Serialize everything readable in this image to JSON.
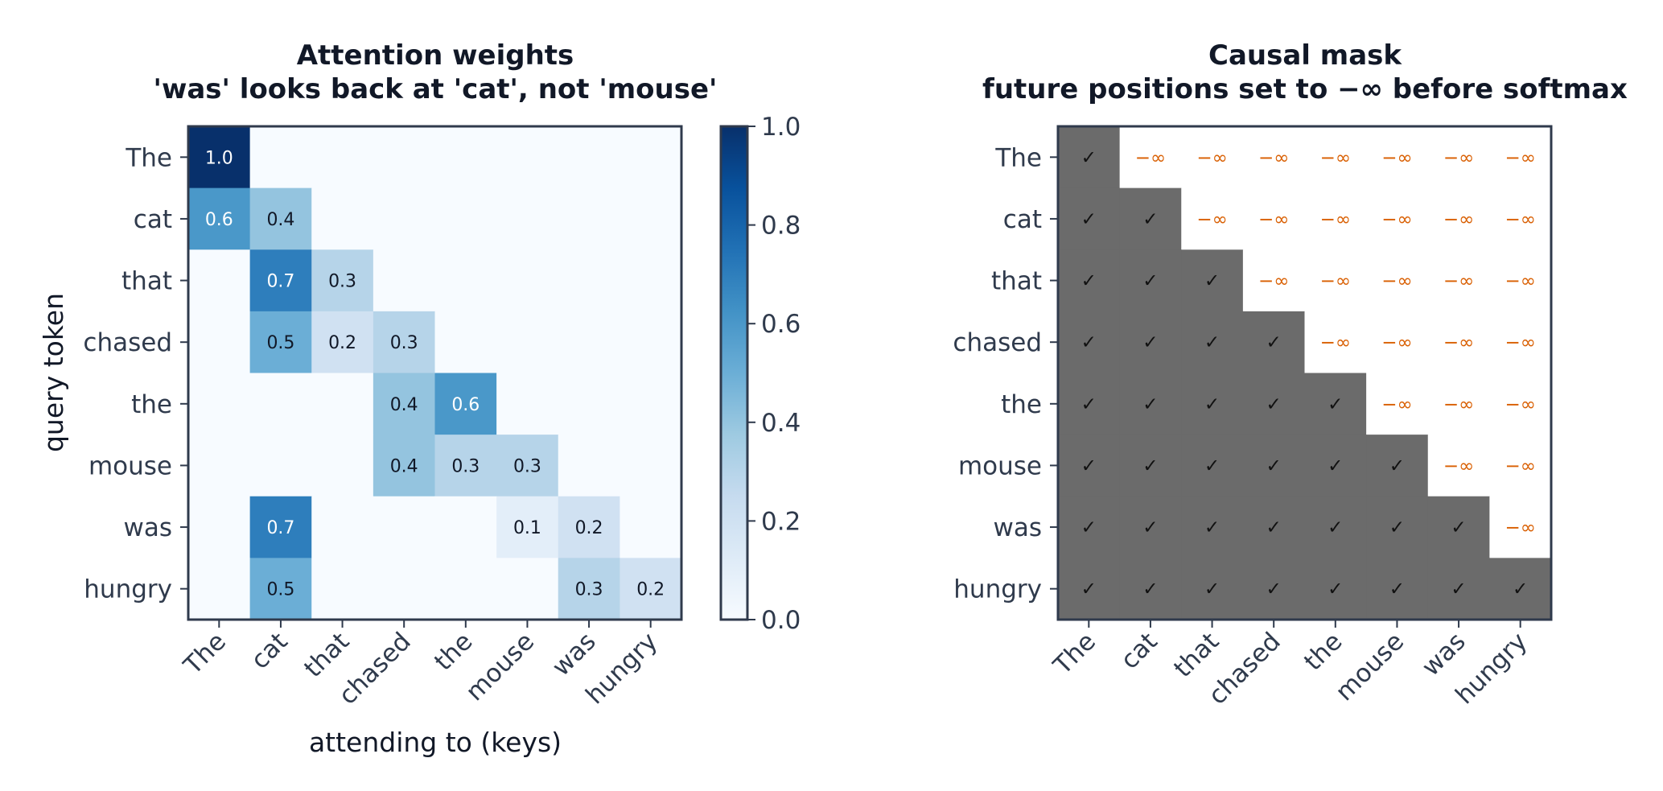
{
  "chart_data": [
    {
      "type": "heatmap",
      "title": "Attention weights\n'was' looks back at 'cat', not 'mouse'",
      "xlabel": "attending to (keys)",
      "ylabel": "query token",
      "x_categories": [
        "The",
        "cat",
        "that",
        "chased",
        "the",
        "mouse",
        "was",
        "hungry"
      ],
      "y_categories": [
        "The",
        "cat",
        "that",
        "chased",
        "the",
        "mouse",
        "was",
        "hungry"
      ],
      "values": [
        [
          1.0,
          0.0,
          0.0,
          0.0,
          0.0,
          0.0,
          0.0,
          0.0
        ],
        [
          0.6,
          0.4,
          0.0,
          0.0,
          0.0,
          0.0,
          0.0,
          0.0
        ],
        [
          0.0,
          0.7,
          0.3,
          0.0,
          0.0,
          0.0,
          0.0,
          0.0
        ],
        [
          0.0,
          0.5,
          0.2,
          0.3,
          0.0,
          0.0,
          0.0,
          0.0
        ],
        [
          0.0,
          0.0,
          0.0,
          0.4,
          0.6,
          0.0,
          0.0,
          0.0
        ],
        [
          0.0,
          0.0,
          0.0,
          0.4,
          0.3,
          0.3,
          0.0,
          0.0
        ],
        [
          0.0,
          0.7,
          0.0,
          0.0,
          0.0,
          0.1,
          0.2,
          0.0
        ],
        [
          0.0,
          0.5,
          0.0,
          0.0,
          0.0,
          0.0,
          0.3,
          0.2
        ]
      ],
      "colormap": "Blues",
      "colorbar": {
        "range": [
          0.0,
          1.0
        ],
        "ticks": [
          "0.0",
          "0.2",
          "0.4",
          "0.6",
          "0.8",
          "1.0"
        ]
      }
    },
    {
      "type": "heatmap",
      "title": "Causal mask\nfuture positions set to −∞ before softmax",
      "xlabel": "",
      "ylabel": "",
      "x_categories": [
        "The",
        "cat",
        "that",
        "chased",
        "the",
        "mouse",
        "was",
        "hungry"
      ],
      "y_categories": [
        "The",
        "cat",
        "that",
        "chased",
        "the",
        "mouse",
        "was",
        "hungry"
      ],
      "allowed_symbol": "✓",
      "masked_symbol": "−∞",
      "allowed_color": "#6b6b6b",
      "masked_color": "#ffffff",
      "masked_text_color": "#d95f02"
    }
  ]
}
